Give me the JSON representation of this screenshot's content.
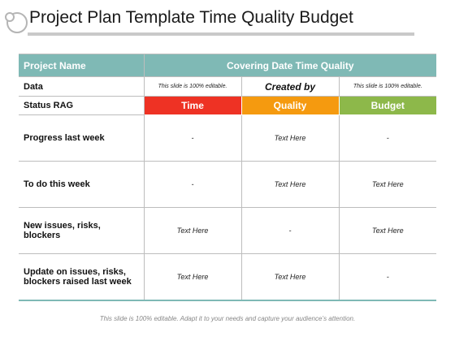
{
  "title": "Project Plan Template Time Quality Budget",
  "table": {
    "header": {
      "col1": "Project Name",
      "merged": "Covering Date Time Quality"
    },
    "data_row": {
      "label": "Data",
      "c1": "This slide is 100% editable.",
      "c2": "Created by",
      "c3": "This slide is 100% editable."
    },
    "rag_row": {
      "label": "Status RAG",
      "c1": "Time",
      "c2": "Quality",
      "c3": "Budget"
    },
    "rows": [
      {
        "label": "Progress last week",
        "cells": [
          "-",
          "Text Here",
          "-"
        ]
      },
      {
        "label": "To do this week",
        "cells": [
          "-",
          "Text Here",
          "Text Here"
        ]
      },
      {
        "label": "New issues, risks, blockers",
        "cells": [
          "Text Here",
          "-",
          "Text Here"
        ]
      },
      {
        "label": "Update on issues, risks, blockers raised last week",
        "cells": [
          "Text Here",
          "Text Here",
          "-"
        ]
      }
    ]
  },
  "footer": "This slide is 100% editable. Adapt it to your needs and capture your audience’s attention.",
  "colors": {
    "header": "#7fb9b5",
    "time": "#ee3224",
    "quality": "#f59a0f",
    "budget": "#8db84a"
  }
}
